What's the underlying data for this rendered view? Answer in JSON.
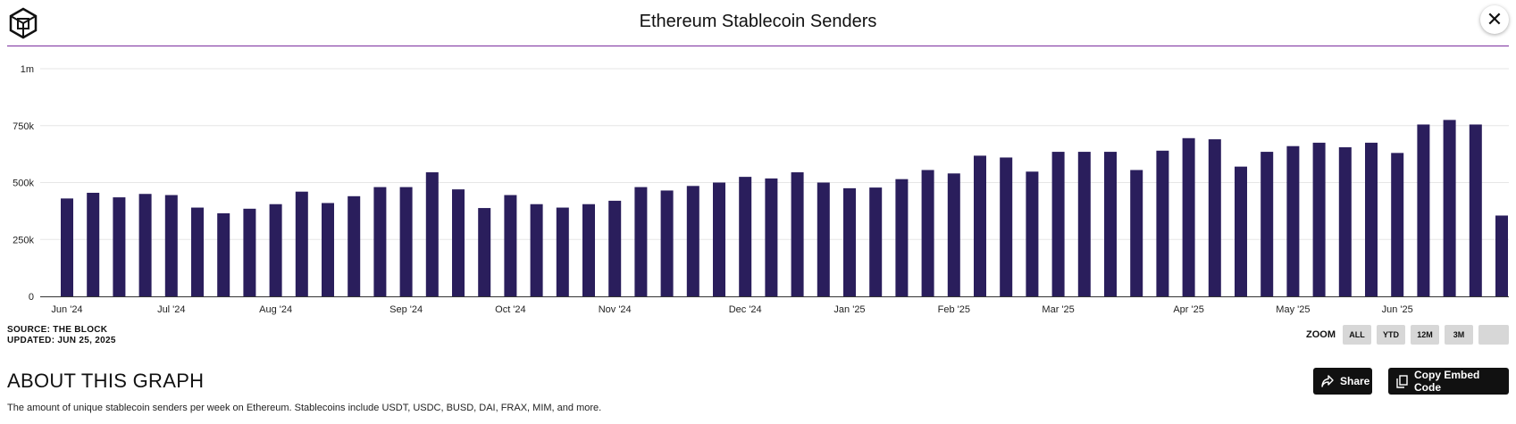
{
  "header": {
    "title": "Ethereum Stablecoin Senders",
    "close_label": "✕"
  },
  "chart_data": {
    "type": "bar",
    "title": "Ethereum Stablecoin Senders",
    "xlabel": "",
    "ylabel": "",
    "ylim": [
      0,
      1000000
    ],
    "y_ticks": [
      0,
      250000,
      500000,
      750000,
      1000000
    ],
    "y_tick_labels": [
      "0",
      "250k",
      "500k",
      "750k",
      "1m"
    ],
    "x_tick_labels": [
      "Jun '24",
      "Jul '24",
      "Aug '24",
      "Sep '24",
      "Oct '24",
      "Nov '24",
      "Dec '24",
      "Jan '25",
      "Feb '25",
      "Mar '25",
      "Apr '25",
      "May '25",
      "Jun '25"
    ],
    "x_tick_bar_index": [
      0,
      4,
      8,
      13,
      17,
      21,
      26,
      30,
      34,
      38,
      43,
      47,
      51
    ],
    "grid": true,
    "bar_color": "#2a1e5c",
    "values": [
      430000,
      455000,
      435000,
      450000,
      445000,
      390000,
      365000,
      385000,
      405000,
      460000,
      410000,
      440000,
      480000,
      480000,
      545000,
      470000,
      388000,
      445000,
      405000,
      390000,
      405000,
      420000,
      480000,
      465000,
      485000,
      500000,
      525000,
      518000,
      545000,
      500000,
      475000,
      478000,
      515000,
      555000,
      540000,
      618000,
      610000,
      548000,
      635000,
      635000,
      635000,
      555000,
      640000,
      695000,
      690000,
      570000,
      635000,
      660000,
      675000,
      655000,
      675000,
      630000,
      755000,
      775000,
      755000,
      355000
    ]
  },
  "source": {
    "line1": "SOURCE: THE BLOCK",
    "line2": "UPDATED: JUN 25, 2025"
  },
  "zoom": {
    "label": "ZOOM",
    "buttons": [
      "ALL",
      "YTD",
      "12M",
      "3M"
    ]
  },
  "about": {
    "title": "ABOUT THIS GRAPH",
    "description": "The amount of unique stablecoin senders per week on Ethereum. Stablecoins include USDT, USDC, BUSD, DAI, FRAX, MIM, and more."
  },
  "actions": {
    "share_label": "Share",
    "embed_label": "Copy Embed Code"
  }
}
